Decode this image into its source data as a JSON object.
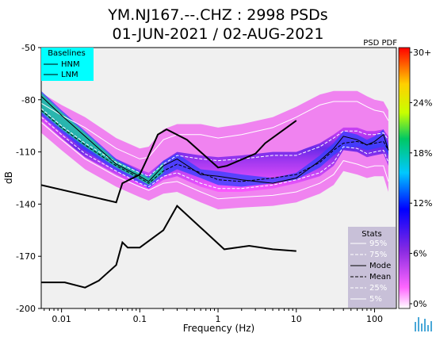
{
  "title_line1": "YM.NJ167.--.CHZ : 2998 PSDs",
  "title_line2": "01-JUN-2021 / 02-AUG-2021",
  "colorbar_label": "PSD PDF",
  "colorbar_ticks": [
    "30+",
    "24%",
    "18%",
    "12%",
    "6%",
    "0%"
  ],
  "baselines_legend": {
    "title": "Baselines",
    "items": [
      "HNM",
      "LNM"
    ]
  },
  "stats_legend": {
    "title": "Stats",
    "items": [
      "95%",
      "75%",
      "Mode",
      "Mean",
      "25%",
      "5%"
    ]
  },
  "colors": {
    "baselines_bg": "#00ffff",
    "stats_bg": "#c8c0d8",
    "plot_bg": "#f0f0f0"
  },
  "icon": "waveform-logo-icon",
  "chart_data": {
    "type": "heatmap",
    "xlabel": "Frequency (Hz)",
    "ylabel": "dB",
    "x_scale": "log",
    "xlim": [
      0.0055,
      190
    ],
    "ylim": [
      -200,
      -50
    ],
    "xticks": [
      0.01,
      0.1,
      1,
      10,
      100
    ],
    "xtick_labels": [
      "0.01",
      "0.1",
      "1",
      "10",
      "100"
    ],
    "yticks": [
      -200,
      -170,
      -140,
      -110,
      -80,
      -50
    ],
    "ytick_labels": [
      "-200",
      "-170",
      "-140",
      "-110",
      "-80",
      "-50"
    ],
    "colorbar_range_percent": [
      0,
      30
    ],
    "hnm": {
      "x": [
        0.0055,
        0.05,
        0.06,
        0.1,
        0.13,
        0.17,
        0.22,
        0.4,
        1.0,
        1.3,
        3.0,
        4.0,
        10
      ],
      "y": [
        -129,
        -139,
        -128,
        -123,
        -112,
        -100,
        -97,
        -103,
        -119,
        -118,
        -111,
        -105,
        -92
      ]
    },
    "lnm": {
      "x": [
        0.0055,
        0.011,
        0.02,
        0.03,
        0.05,
        0.06,
        0.07,
        0.1,
        0.2,
        0.3,
        1.2,
        2.5,
        5,
        10
      ],
      "y": [
        -185,
        -185,
        -188,
        -184,
        -175,
        -162,
        -165,
        -165,
        -155,
        -141,
        -166,
        -164,
        -166,
        -167
      ]
    },
    "series": [
      {
        "name": "95%",
        "x": [
          0.0055,
          0.01,
          0.02,
          0.05,
          0.1,
          0.13,
          0.2,
          0.3,
          0.6,
          1,
          2,
          5,
          10,
          20,
          30,
          40,
          60,
          80,
          100,
          130,
          150
        ],
        "y": [
          -82,
          -89,
          -96,
          -108,
          -114,
          -113,
          -103,
          -100,
          -100,
          -102,
          -100,
          -96,
          -90,
          -83,
          -81,
          -81,
          -81,
          -84,
          -86,
          -87,
          -92
        ]
      },
      {
        "name": "75%",
        "x": [
          0.0055,
          0.01,
          0.02,
          0.05,
          0.1,
          0.13,
          0.2,
          0.3,
          0.6,
          1,
          2,
          5,
          10,
          20,
          30,
          40,
          60,
          80,
          100,
          130,
          150
        ],
        "y": [
          -85,
          -95,
          -105,
          -116,
          -122,
          -124,
          -117,
          -112,
          -114,
          -115,
          -114,
          -112,
          -112,
          -107,
          -102,
          -98,
          -98,
          -100,
          -100,
          -99,
          -103
        ]
      },
      {
        "name": "Mode",
        "x": [
          0.0055,
          0.01,
          0.02,
          0.05,
          0.1,
          0.13,
          0.2,
          0.3,
          0.6,
          1,
          2,
          5,
          10,
          20,
          30,
          40,
          60,
          80,
          100,
          130,
          150
        ],
        "y": [
          -78,
          -89,
          -101,
          -117,
          -124,
          -127,
          -118,
          -114,
          -123,
          -124,
          -126,
          -128,
          -125,
          -115,
          -108,
          -101,
          -103,
          -106,
          -104,
          -100,
          -109
        ]
      },
      {
        "name": "Mean",
        "x": [
          0.0055,
          0.01,
          0.02,
          0.05,
          0.1,
          0.13,
          0.2,
          0.3,
          0.6,
          1,
          2,
          5,
          10,
          20,
          30,
          40,
          60,
          80,
          100,
          130,
          150
        ],
        "y": [
          -86,
          -96,
          -106,
          -118,
          -125,
          -128,
          -121,
          -117,
          -122,
          -126,
          -127,
          -125,
          -123,
          -116,
          -109,
          -105,
          -104,
          -106,
          -105,
          -104,
          -109
        ]
      },
      {
        "name": "25%",
        "x": [
          0.0055,
          0.01,
          0.02,
          0.05,
          0.1,
          0.13,
          0.2,
          0.3,
          0.6,
          1,
          2,
          5,
          10,
          20,
          30,
          40,
          60,
          80,
          100,
          130,
          150
        ],
        "y": [
          -90,
          -100,
          -111,
          -121,
          -128,
          -130,
          -124,
          -122,
          -128,
          -131,
          -131,
          -129,
          -126,
          -122,
          -116,
          -107,
          -108,
          -111,
          -110,
          -109,
          -116
        ]
      },
      {
        "name": "5%",
        "x": [
          0.0055,
          0.01,
          0.02,
          0.05,
          0.1,
          0.13,
          0.2,
          0.3,
          0.6,
          1,
          2,
          5,
          10,
          20,
          30,
          40,
          60,
          80,
          100,
          130,
          150
        ],
        "y": [
          -93,
          -103,
          -114,
          -124,
          -130,
          -132,
          -128,
          -127,
          -133,
          -137,
          -136,
          -135,
          -133,
          -128,
          -123,
          -115,
          -117,
          -119,
          -118,
          -118,
          -127
        ]
      }
    ]
  }
}
